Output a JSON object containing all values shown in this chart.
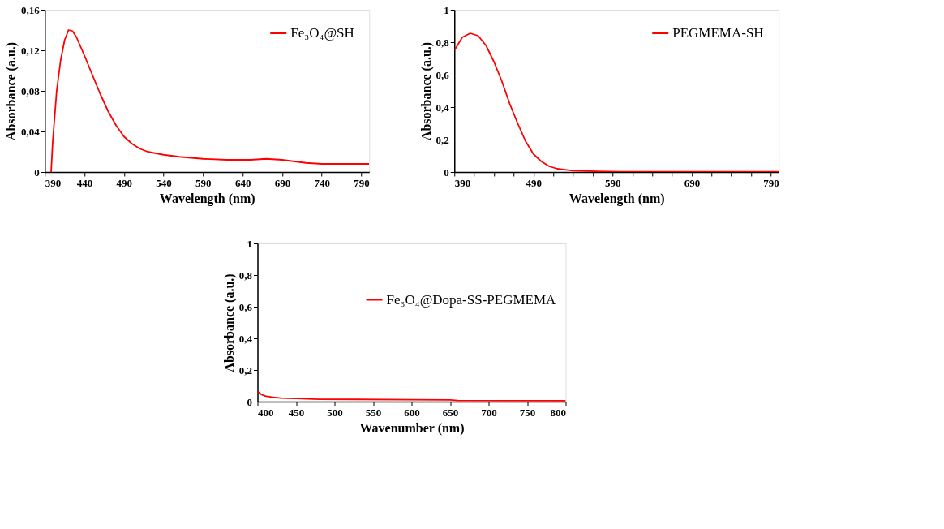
{
  "chart_data": [
    {
      "type": "line",
      "xlabel": "Wavelength (nm)",
      "ylabel": "Absorbance  (a.u.)",
      "grid": false,
      "legend": "top right",
      "marker": "none",
      "line_style": "solid",
      "x": [
        398,
        400,
        405,
        410,
        415,
        420,
        425,
        430,
        440,
        450,
        460,
        470,
        480,
        490,
        500,
        510,
        520,
        540,
        560,
        590,
        620,
        650,
        670,
        690,
        710,
        720,
        740,
        770,
        800
      ],
      "series": [
        {
          "name": "Fe₃O₄@SH",
          "color": "#ff0000",
          "values": [
            0,
            0.03,
            0.08,
            0.11,
            0.13,
            0.14,
            0.139,
            0.133,
            0.115,
            0.096,
            0.077,
            0.06,
            0.046,
            0.035,
            0.028,
            0.023,
            0.02,
            0.017,
            0.015,
            0.013,
            0.012,
            0.012,
            0.013,
            0.012,
            0.01,
            0.009,
            0.008,
            0.008,
            0.008
          ]
        }
      ],
      "xlim": [
        390,
        800
      ],
      "xticks": [
        390,
        440,
        490,
        540,
        590,
        640,
        690,
        740,
        790
      ],
      "ylim": [
        0,
        0.16
      ],
      "yticks": [
        0,
        {
          "value": 0.04,
          "label": "0,04"
        },
        {
          "value": 0.08,
          "label": "0,08"
        },
        {
          "value": 0.12,
          "label": "0,12"
        },
        {
          "value": 0.16,
          "label": "0,16"
        }
      ]
    },
    {
      "type": "line",
      "xlabel": "Wavelength (nm)",
      "ylabel": "Absorbance (a.u.)",
      "grid": false,
      "legend": "top right",
      "marker": "none",
      "line_style": "solid",
      "x": [
        390,
        400,
        410,
        420,
        430,
        440,
        450,
        460,
        470,
        480,
        490,
        500,
        510,
        520,
        540,
        570,
        600,
        800
      ],
      "series": [
        {
          "name": "PEGMEMA-SH",
          "color": "#ff0000",
          "values": [
            0.75,
            0.83,
            0.855,
            0.84,
            0.78,
            0.68,
            0.56,
            0.42,
            0.3,
            0.19,
            0.11,
            0.065,
            0.035,
            0.02,
            0.008,
            0.004,
            0.002,
            0.002
          ]
        }
      ],
      "xlim": [
        390,
        800
      ],
      "xticks": [
        390,
        {
          "value": 415,
          "label": null
        },
        {
          "value": 440,
          "label": null
        },
        {
          "value": 465,
          "label": null
        },
        490,
        {
          "value": 515,
          "label": null
        },
        {
          "value": 540,
          "label": null
        },
        {
          "value": 565,
          "label": null
        },
        590,
        {
          "value": 615,
          "label": null
        },
        {
          "value": 640,
          "label": null
        },
        {
          "value": 665,
          "label": null
        },
        690,
        {
          "value": 715,
          "label": null
        },
        {
          "value": 740,
          "label": null
        },
        {
          "value": 765,
          "label": null
        },
        790
      ],
      "ylim": [
        0,
        1
      ],
      "yticks": [
        0,
        {
          "value": 0.2,
          "label": "0,2"
        },
        {
          "value": 0.4,
          "label": "0,4"
        },
        {
          "value": 0.6,
          "label": "0,6"
        },
        {
          "value": 0.8,
          "label": "0,8"
        },
        1
      ]
    },
    {
      "type": "line",
      "xlabel": "Wavenumber (nm)",
      "ylabel": "Absorbance (a.u.)",
      "grid": false,
      "legend": "right",
      "marker": "none",
      "line_style": "solid",
      "x": [
        400,
        405,
        410,
        420,
        430,
        450,
        480,
        530,
        600,
        650,
        660,
        800
      ],
      "series": [
        {
          "name": "Fe₃O₄@Dopa-SS-PEGMEMA",
          "color": "#ff0000",
          "values": [
            0.065,
            0.045,
            0.035,
            0.028,
            0.022,
            0.02,
            0.015,
            0.014,
            0.012,
            0.011,
            0.007,
            0.006
          ]
        }
      ],
      "xlim": [
        400,
        800
      ],
      "xticks": [
        400,
        450,
        500,
        550,
        600,
        650,
        700,
        750,
        800
      ],
      "ylim": [
        0,
        1
      ],
      "yticks": [
        0,
        {
          "value": 0.2,
          "label": "0,2"
        },
        {
          "value": 0.4,
          "label": "0,4"
        },
        {
          "value": 0.6,
          "label": "0,6"
        },
        {
          "value": 0.8,
          "label": "0,8"
        },
        1
      ]
    }
  ]
}
